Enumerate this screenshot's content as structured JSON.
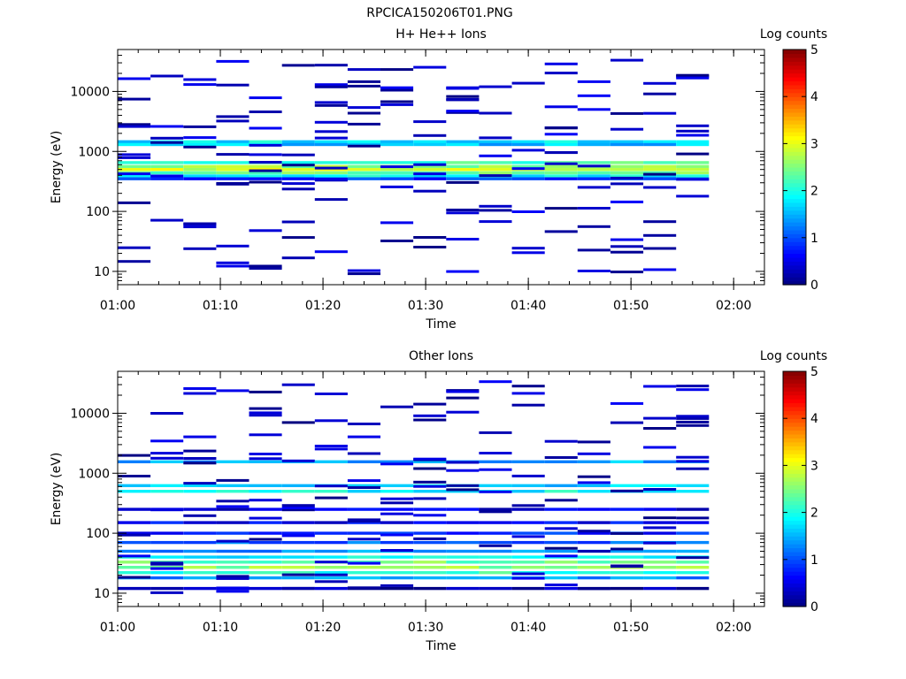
{
  "figure_title": "RPCICA150206T01.PNG",
  "chart_data": [
    {
      "type": "heatmap",
      "title": "H+ He++ Ions",
      "xlabel": "Time",
      "ylabel": "Energy (eV)",
      "colorbar_label": "Log counts",
      "x_ticks": [
        "01:00",
        "01:10",
        "01:20",
        "01:30",
        "01:40",
        "01:50",
        "02:00"
      ],
      "x_range_minutes": [
        0,
        63
      ],
      "y_scale": "log",
      "y_range": [
        6,
        50000
      ],
      "y_ticks": [
        10,
        100,
        1000,
        10000
      ],
      "colorbar_ticks": [
        "0",
        "1",
        "2",
        "3",
        "4",
        "5"
      ],
      "colorbar_range": [
        0,
        5
      ],
      "time_bins_minutes": [
        0,
        3.2,
        6.4,
        9.6,
        12.8,
        16.0,
        19.2,
        22.4,
        25.6,
        28.8,
        32.0,
        35.2,
        38.4,
        41.6,
        44.8,
        48.0,
        51.2,
        54.4
      ],
      "energy_profile": [
        {
          "energy_eV": 1450,
          "log_counts": 1.8
        },
        {
          "energy_eV": 1300,
          "log_counts": 1.6
        },
        {
          "energy_eV": 650,
          "log_counts": 2.2
        },
        {
          "energy_eV": 560,
          "log_counts": 2.6
        },
        {
          "energy_eV": 500,
          "log_counts": 2.9
        },
        {
          "energy_eV": 440,
          "log_counts": 2.4
        },
        {
          "energy_eV": 390,
          "log_counts": 1.9
        },
        {
          "energy_eV": 350,
          "log_counts": 0.9
        }
      ]
    },
    {
      "type": "heatmap",
      "title": "Other Ions",
      "xlabel": "Time",
      "ylabel": "Energy (eV)",
      "colorbar_label": "Log counts",
      "x_ticks": [
        "01:00",
        "01:10",
        "01:20",
        "01:30",
        "01:40",
        "01:50",
        "02:00"
      ],
      "x_range_minutes": [
        0,
        63
      ],
      "y_scale": "log",
      "y_range": [
        6,
        50000
      ],
      "y_ticks": [
        10,
        100,
        1000,
        10000
      ],
      "colorbar_ticks": [
        "0",
        "1",
        "2",
        "3",
        "4",
        "5"
      ],
      "colorbar_range": [
        0,
        5
      ],
      "time_bins_minutes": [
        0,
        3.2,
        6.4,
        9.6,
        12.8,
        16.0,
        19.2,
        22.4,
        25.6,
        28.8,
        32.0,
        35.2,
        38.4,
        41.6,
        44.8,
        48.0,
        51.2,
        54.4
      ],
      "energy_profile": [
        {
          "energy_eV": 1550,
          "log_counts": 1.5
        },
        {
          "energy_eV": 620,
          "log_counts": 1.7
        },
        {
          "energy_eV": 500,
          "log_counts": 1.9
        },
        {
          "energy_eV": 250,
          "log_counts": 0.5
        },
        {
          "energy_eV": 150,
          "log_counts": 0.6
        },
        {
          "energy_eV": 100,
          "log_counts": 0.8
        },
        {
          "energy_eV": 70,
          "log_counts": 1.1
        },
        {
          "energy_eV": 50,
          "log_counts": 1.3
        },
        {
          "energy_eV": 40,
          "log_counts": 1.9
        },
        {
          "energy_eV": 33,
          "log_counts": 2.4
        },
        {
          "energy_eV": 27,
          "log_counts": 2.6
        },
        {
          "energy_eV": 22,
          "log_counts": 2.1
        },
        {
          "energy_eV": 18,
          "log_counts": 1.3
        },
        {
          "energy_eV": 12,
          "log_counts": 0.2
        }
      ]
    }
  ]
}
